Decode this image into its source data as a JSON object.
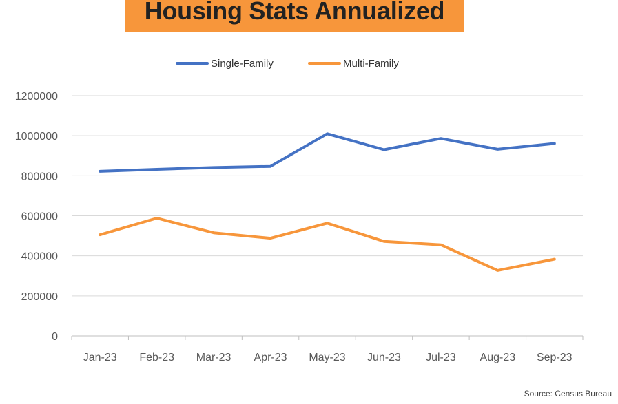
{
  "title": "Housing Stats Annualized",
  "source": "Source: Census Bureau",
  "colors": {
    "banner": "#f7963b",
    "single_family": "#4472c4",
    "multi_family": "#f7963b",
    "grid": "#d9d9d9"
  },
  "chart_data": {
    "type": "line",
    "title": "Housing Stats Annualized",
    "xlabel": "",
    "ylabel": "",
    "categories": [
      "Jan-23",
      "Feb-23",
      "Mar-23",
      "Apr-23",
      "May-23",
      "Jun-23",
      "Jul-23",
      "Aug-23",
      "Sep-23"
    ],
    "y_ticks": [
      "0",
      "200000",
      "400000",
      "600000",
      "800000",
      "1000000",
      "1200000"
    ],
    "ylim": [
      0,
      1200000
    ],
    "grid": true,
    "legend_position": "top-center",
    "series": [
      {
        "name": "Single-Family",
        "color": "#4472c4",
        "values": [
          822000,
          832000,
          841000,
          847000,
          1010000,
          930000,
          986000,
          932000,
          961000
        ]
      },
      {
        "name": "Multi-Family",
        "color": "#f7963b",
        "values": [
          505000,
          588000,
          515000,
          488000,
          563000,
          472000,
          455000,
          327000,
          383000
        ]
      }
    ]
  }
}
